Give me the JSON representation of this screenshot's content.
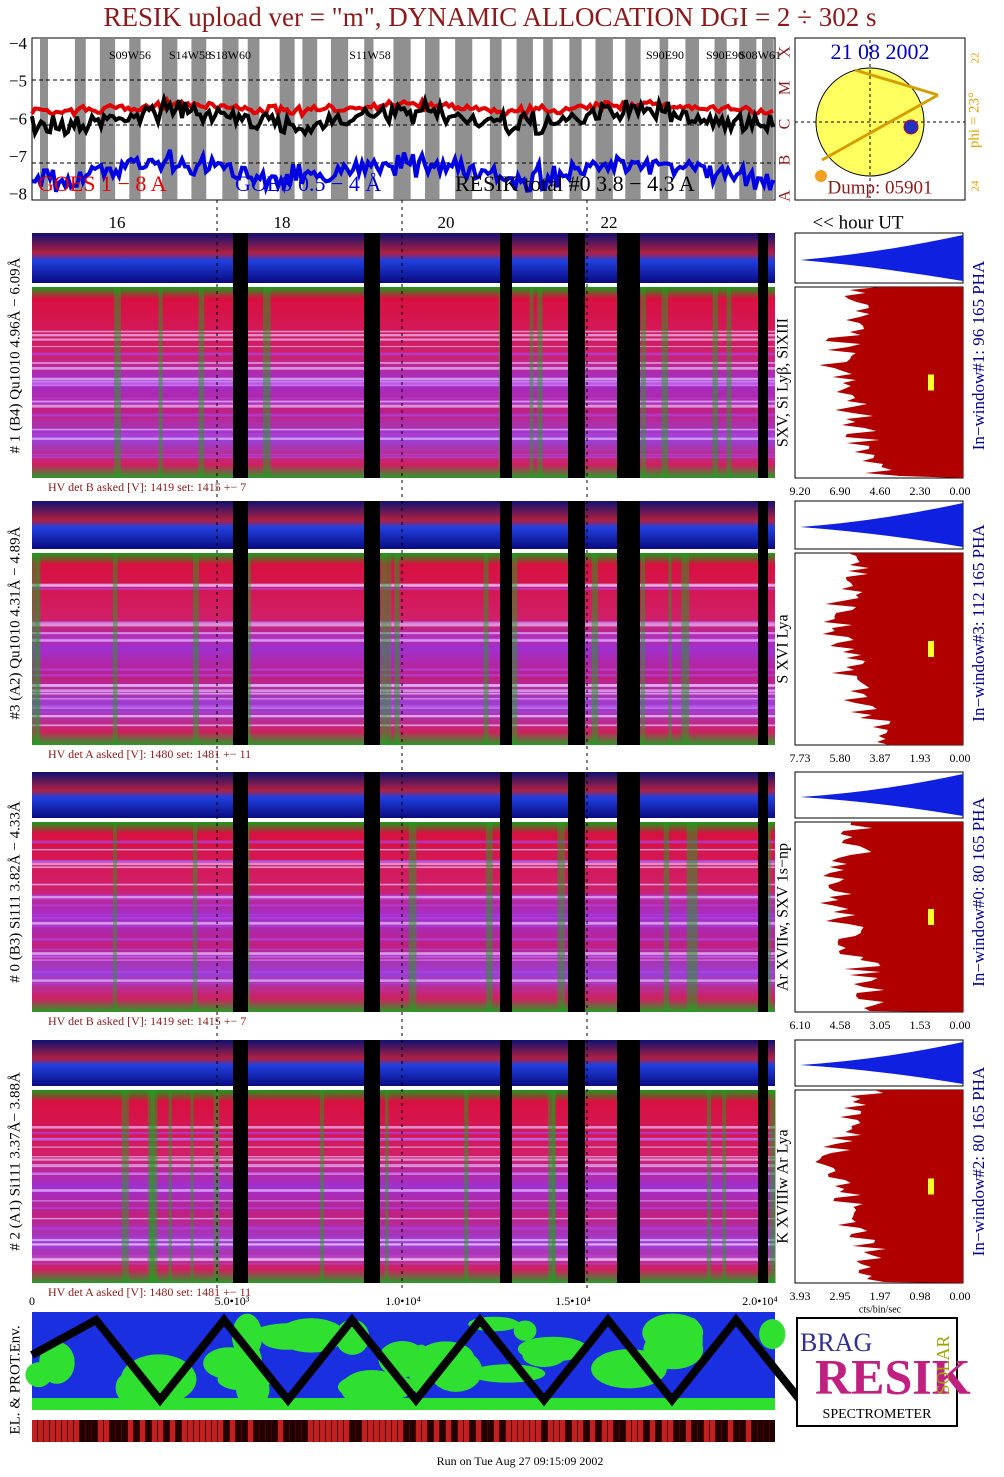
{
  "header": {
    "title": "RESIK upload ver = \"m\", DYNAMIC ALLOCATION  DGI =   2 ÷ 302 s"
  },
  "goes": {
    "yticks": [
      "−4",
      "−5",
      "−6",
      "−7",
      "−8"
    ],
    "flare_labels": [
      "S09W56",
      "S14W58",
      "S18W60",
      "S11W58",
      "S90E90",
      "S90E90",
      "S08W61"
    ],
    "classes": [
      "A",
      "B",
      "C",
      "M",
      "X"
    ],
    "legend": [
      "GOES 1 − 8 A",
      "GOES 0.5 − 4 Å",
      "RESIK total #0  3.8 − 4.3 A"
    ],
    "hours": [
      "16",
      "18",
      "20",
      "22"
    ],
    "hour_label": "<< hour UT"
  },
  "sun": {
    "date": "21 08 2002",
    "phi": "phi = 23°",
    "tick_top": "22",
    "tick_bottom": "24",
    "dump": "Dump: 05901"
  },
  "panels": [
    {
      "label": "# 1 (B4) Qu1010 4.96Å − 6.09Å",
      "lines": "SXV, Si Lyβ, SiXIII",
      "window": "In−window#1:   96 165  PHA",
      "hv": "HV det B asked [V]:  1419 set:  1415 +−   7",
      "hist_ticks": [
        "9.20",
        "6.90",
        "4.60",
        "2.30",
        "0.00"
      ]
    },
    {
      "label": "#3 (A2) Qu1010  4.31Å − 4.89Å",
      "lines": "S XVI Lya",
      "window": "In−window#3:   112 165  PHA",
      "hv": "HV det A asked [V]:  1480 set:  1481 +−   11",
      "hist_ticks": [
        "7.73",
        "5.80",
        "3.87",
        "1.93",
        "0.00"
      ]
    },
    {
      "label": "# 0 (B3) Si111  3.82Å − 4.33Å",
      "lines": "Ar XVIIw,  SXV 1s−np",
      "window": "In−window#0:   80 165  PHA",
      "hv": "HV det B asked [V]:  1419 set:  1415 +−   7",
      "hist_ticks": [
        "6.10",
        "4.58",
        "3.05",
        "1.53",
        "0.00"
      ]
    },
    {
      "label": "# 2 (A1) Si111  3.37Å− 3.88Å",
      "lines": "K XVIIIw  Ar Lya",
      "window": "In−window#2:   80 165  PHA",
      "hv": "HV det A asked [V]:  1480 set:  1481 +−   11",
      "hist_ticks": [
        "3.93",
        "2.95",
        "1.97",
        "0.98",
        "0.00"
      ]
    }
  ],
  "hist_unit": "cts/bin/sec",
  "xaxis": [
    "0",
    "5.0•10³",
    "1.0•10⁴",
    "1.5•10⁴",
    "2.0•10⁴"
  ],
  "env_label": "EL. & PROT.Env.",
  "logo": {
    "top": "BRAG",
    "middle": "RESIK",
    "right": "SOLAR",
    "bottom": "SPECTROMETER"
  },
  "footer": "Run on Tue Aug 27 09:15:09 2002"
}
